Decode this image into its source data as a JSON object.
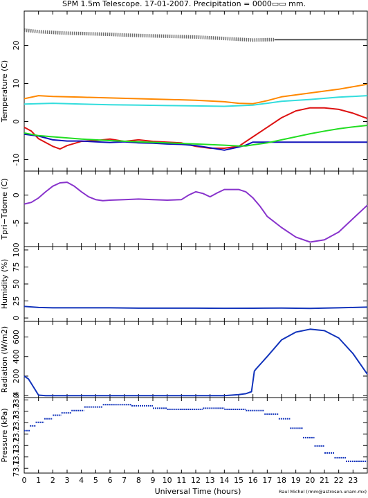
{
  "chart_data": {
    "type": "line",
    "title": "SPM 1.5m Telescope. 17-01-2007. Precipitation = 0000▭▭ mm.",
    "xlabel": "Universal Time (hours)",
    "credit": "Raul Michel (rmm@astrosen.unam.mx)",
    "x_range": [
      0,
      24
    ],
    "x_ticks": [
      "0",
      "1",
      "2",
      "3",
      "4",
      "5",
      "6",
      "7",
      "8",
      "9",
      "10",
      "11",
      "12",
      "13",
      "14",
      "15",
      "16",
      "17",
      "18",
      "19",
      "20",
      "21",
      "22",
      "23"
    ],
    "panels": [
      {
        "ylabel": "Temperature (C)",
        "ylim": [
          -13,
          29
        ],
        "y_ticks": [
          "-10",
          "0",
          "10",
          "20"
        ],
        "series": [
          {
            "color": "#555555",
            "style": "dots",
            "x": [
              0,
              1,
              2,
              3,
              4,
              5,
              6,
              7,
              8,
              9,
              10,
              11,
              12,
              13,
              14,
              15,
              16,
              17,
              17.5
            ],
            "y": [
              24,
              23.6,
              23.4,
              23.2,
              23.1,
              23,
              22.9,
              22.7,
              22.6,
              22.5,
              22.4,
              22.3,
              22.2,
              22,
              21.8,
              21.6,
              21.4,
              21.5,
              21.5
            ]
          },
          {
            "color": "#555555",
            "style": "line",
            "x": [
              17.5,
              24
            ],
            "y": [
              21.5,
              21.5
            ]
          },
          {
            "color": "#ff8800",
            "style": "line",
            "x": [
              0,
              1,
              2,
              4,
              6,
              8,
              10,
              12,
              14,
              15,
              16,
              17,
              18,
              20,
              22,
              24
            ],
            "y": [
              6,
              6.8,
              6.6,
              6.4,
              6.2,
              6,
              5.8,
              5.6,
              5.2,
              4.8,
              4.7,
              5.5,
              6.5,
              7.5,
              8.5,
              9.8
            ]
          },
          {
            "color": "#33dddd",
            "style": "line",
            "x": [
              0,
              2,
              4,
              6,
              8,
              10,
              12,
              14,
              16,
              17,
              18,
              20,
              22,
              24
            ],
            "y": [
              4.6,
              4.8,
              4.6,
              4.4,
              4.3,
              4.2,
              4.1,
              4,
              4.3,
              4.8,
              5.3,
              5.8,
              6.4,
              6.8
            ]
          },
          {
            "color": "#dd1111",
            "style": "line",
            "x": [
              0,
              0.5,
              1,
              2,
              2.5,
              3,
              4,
              5,
              6,
              7,
              8,
              9,
              10,
              11,
              12,
              13,
              14,
              15,
              16,
              17,
              18,
              19,
              20,
              21,
              22,
              23,
              24
            ],
            "y": [
              -1.5,
              -2.5,
              -4.5,
              -6.5,
              -7.2,
              -6.3,
              -5.2,
              -5,
              -4.6,
              -5.2,
              -4.8,
              -5.2,
              -5.4,
              -5.6,
              -6.5,
              -7,
              -7,
              -6.5,
              -4,
              -1.5,
              1,
              2.8,
              3.6,
              3.6,
              3.2,
              2.2,
              0.8
            ]
          },
          {
            "color": "#1111bb",
            "style": "line",
            "x": [
              0,
              1,
              2,
              3,
              4,
              5,
              6,
              7,
              8,
              9,
              10,
              11,
              12,
              13,
              14,
              15,
              15.5,
              16,
              24
            ],
            "y": [
              -3.3,
              -3.8,
              -4.8,
              -5.1,
              -5.1,
              -5.3,
              -5.5,
              -5.3,
              -5.6,
              -5.7,
              -5.9,
              -6,
              -6.3,
              -6.9,
              -7.5,
              -6.7,
              -6.2,
              -5.4,
              -5.4
            ]
          },
          {
            "color": "#22dd22",
            "style": "line",
            "x": [
              0,
              1,
              2,
              4,
              6,
              8,
              10,
              12,
              14,
              15,
              15.5,
              16,
              17,
              18,
              19,
              20,
              21,
              22,
              23,
              24
            ],
            "y": [
              -3,
              -3.7,
              -4,
              -4.6,
              -5,
              -5.3,
              -5.6,
              -5.9,
              -6.2,
              -6.4,
              -6.4,
              -6.1,
              -5.6,
              -4.8,
              -4,
              -3.2,
              -2.5,
              -1.9,
              -1.4,
              -1
            ]
          }
        ]
      },
      {
        "ylabel": "Tpri−Tdome (C)",
        "ylim": [
          -9.2,
          4.3
        ],
        "y_ticks": [
          "-5",
          "0"
        ],
        "series": [
          {
            "color": "#8833cc",
            "style": "line",
            "x": [
              0,
              0.5,
              1,
              1.5,
              2,
              2.5,
              3,
              3.5,
              4,
              4.5,
              5,
              5.5,
              6,
              7,
              8,
              9,
              10,
              11,
              11.5,
              12,
              12.5,
              13,
              13.5,
              14,
              15,
              15.5,
              16,
              16.5,
              17,
              18,
              19,
              20,
              21,
              22,
              23,
              24
            ],
            "y": [
              -1.6,
              -1.3,
              -0.5,
              0.6,
              1.6,
              2.2,
              2.3,
              1.6,
              0.6,
              -0.3,
              -0.8,
              -1,
              -0.9,
              -0.8,
              -0.7,
              -0.8,
              -0.9,
              -0.8,
              0,
              0.6,
              0.3,
              -0.3,
              0.4,
              1,
              1,
              0.6,
              -0.5,
              -2,
              -3.8,
              -5.8,
              -7.5,
              -8.4,
              -8,
              -6.6,
              -4.2,
              -1.8
            ]
          }
        ]
      },
      {
        "ylabel": "Humidity (%)",
        "ylim": [
          -5,
          105
        ],
        "y_ticks": [
          "0",
          "25",
          "50",
          "75",
          "100"
        ],
        "series": [
          {
            "color": "#1133bb",
            "style": "line",
            "x": [
              0,
              1,
              2,
              4,
              6,
              8,
              10,
              12,
              14,
              16,
              18,
              20,
              22,
              24
            ],
            "y": [
              17,
              15.5,
              15,
              15,
              15,
              14.5,
              14.5,
              14.5,
              14.2,
              14.4,
              14.6,
              14,
              15,
              16
            ]
          }
        ]
      },
      {
        "ylabel": "Radiation (W/m2)",
        "ylim": [
          -20,
          760
        ],
        "y_ticks": [
          "0",
          "200",
          "400",
          "600"
        ],
        "series": [
          {
            "color": "#1133bb",
            "style": "line",
            "x": [
              0,
              0.3,
              0.6,
              1,
              1.5,
              3,
              5,
              8,
              10,
              12,
              14,
              15,
              15.5,
              15.9,
              16.1,
              16.2,
              17,
              18,
              19,
              20,
              21,
              22,
              23,
              24
            ],
            "y": [
              200,
              170,
              100,
              5,
              0,
              0,
              0,
              0,
              0,
              0,
              0,
              10,
              20,
              40,
              250,
              270,
              400,
              570,
              650,
              680,
              665,
              590,
              430,
              220
            ]
          }
        ]
      },
      {
        "ylabel": "Pressure (kPa)",
        "ylim": [
          73.11,
          73.43
        ],
        "y_ticks": [
          "73.1",
          "73.1",
          "73.2",
          "73.2",
          "73.3",
          "73.3",
          "73.4"
        ],
        "series": [
          {
            "color": "#1133bb",
            "style": "steps",
            "x": [
              0,
              0.4,
              0.8,
              1.4,
              2,
              2.6,
              3.3,
              4.2,
              5.5,
              7.5,
              9,
              10,
              11,
              12.5,
              14,
              15.5,
              16.8,
              17.8,
              18.6,
              19.5,
              20.3,
              21,
              21.7,
              22.5,
              24
            ],
            "y": [
              73.29,
              73.31,
              73.325,
              73.34,
              73.355,
              73.365,
              73.375,
              73.39,
              73.4,
              73.395,
              73.385,
              73.38,
              73.38,
              73.385,
              73.38,
              73.375,
              73.36,
              73.34,
              73.3,
              73.26,
              73.225,
              73.195,
              73.175,
              73.16,
              73.16
            ]
          }
        ]
      }
    ]
  }
}
